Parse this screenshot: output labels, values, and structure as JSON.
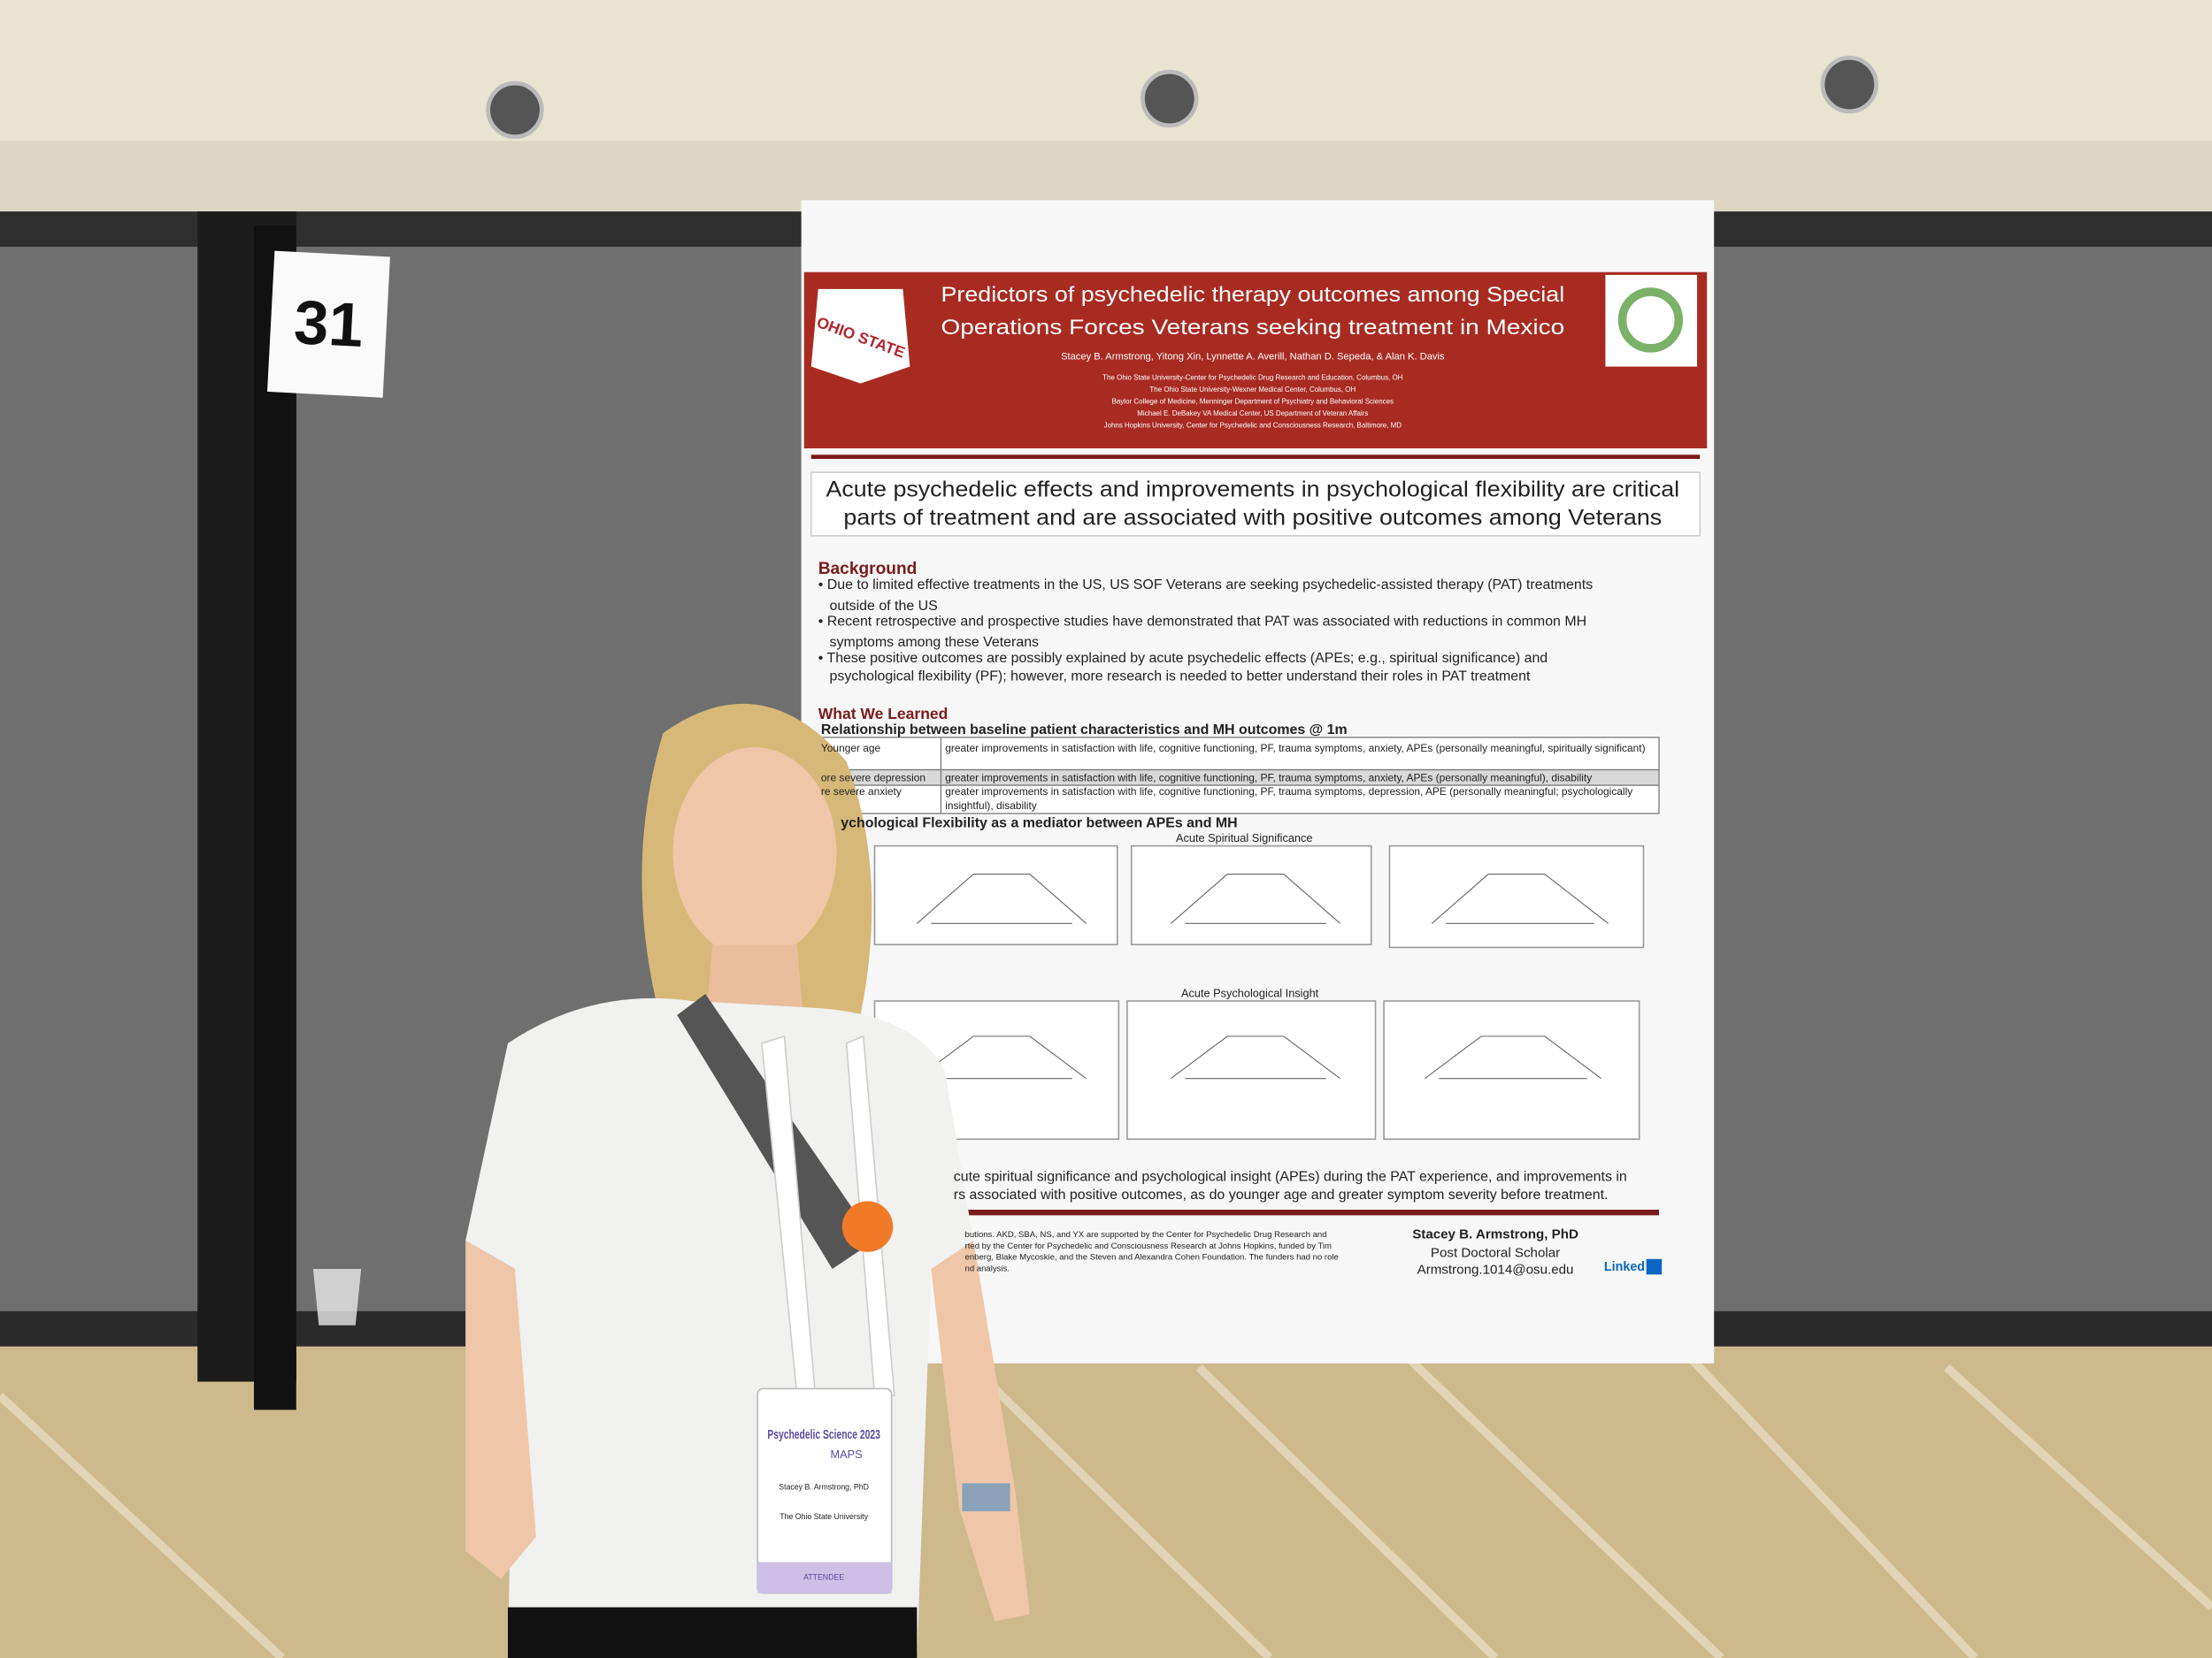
{
  "booth_number": "31",
  "poster": {
    "logo_text": "OHIO STATE",
    "title": [
      "Predictors of psychedelic therapy outcomes among Special",
      "Operations Forces Veterans seeking treatment in Mexico"
    ],
    "authors": "Stacey B. Armstrong, Yitong Xin, Lynnette A. Averill, Nathan D. Sepeda, & Alan K. Davis",
    "affiliations": [
      "The Ohio State University-Center for Psychedelic Drug Research and Education, Columbus, OH",
      "The Ohio State University-Wexner Medical Center, Columbus, OH",
      "Baylor College of Medicine, Menninger Department of Psychiatry and Behavioral Sciences",
      "Michael E. DeBakey VA Medical Center, US Department of Veteran Affairs",
      "Johns Hopkins University, Center for Psychedelic and Consciousness Research, Baltimore, MD"
    ],
    "headline": [
      "Acute psychedelic effects and improvements in psychological flexibility are critical",
      "parts of treatment and are associated with positive outcomes among Veterans"
    ],
    "background": {
      "heading": "Background",
      "lines": [
        "• Due to limited effective treatments in the US, US SOF Veterans are seeking psychedelic-assisted therapy (PAT) treatments",
        "outside of the US",
        "• Recent retrospective and prospective studies have demonstrated that PAT was associated with reductions in common MH",
        "symptoms among these Veterans",
        "• These positive outcomes are possibly explained by acute psychedelic effects (APEs; e.g., spiritual significance) and",
        "psychological flexibility (PF); however, more research is needed to better understand their roles in PAT treatment"
      ]
    },
    "learned": {
      "heading": "What We Learned",
      "subheading": "Relationship between baseline patient characteristics and MH outcomes @ 1m",
      "rows": [
        [
          "Younger age",
          "greater improvements in satisfaction with life, cognitive functioning, PF, trauma symptoms, anxiety, APEs (personally meaningful, spiritually significant)"
        ],
        [
          "ore severe depression",
          "greater improvements in satisfaction with life, cognitive functioning, PF, trauma symptoms, anxiety, APEs (personally meaningful), disability"
        ],
        [
          "re severe anxiety",
          "greater improvements in satisfaction with life, cognitive functioning, PF, trauma symptoms, depression, APE (personally meaningful; psychologically insightful), disability"
        ]
      ]
    },
    "mediator": {
      "heading": "ychological Flexibility as a mediator between APEs and MH",
      "panels": [
        "Acute Spiritual Significance",
        "Acute Psychological Insight"
      ]
    },
    "conclusion": [
      "cute spiritual significance and psychological insight (APEs) during the PAT experience, and improvements in",
      "rs associated with positive outcomes, as do younger age and greater symptom severity before treatment."
    ],
    "funding": [
      "butions. AKD, SBA, NS, and YX are supported by the Center for Psychedelic Drug Research and",
      "rted by the Center for Psychedelic and Consciousness Research at Johns Hopkins, funded by Tim",
      "enberg, Blake Mycoskie, and the Steven and Alexandra Cohen Foundation. The funders had no role",
      "nd analysis."
    ],
    "contact": {
      "name": "Stacey B. Armstrong, PhD",
      "role": "Post Doctoral Scholar",
      "email": "Armstrong.1014@osu.edu",
      "linkedin": "Linked"
    }
  },
  "badge": {
    "event": "Psychedelic Science 2023",
    "org": "MAPS",
    "name": "Stacey B. Armstrong, PhD",
    "university": "The Ohio State University",
    "type": "ATTENDEE"
  }
}
